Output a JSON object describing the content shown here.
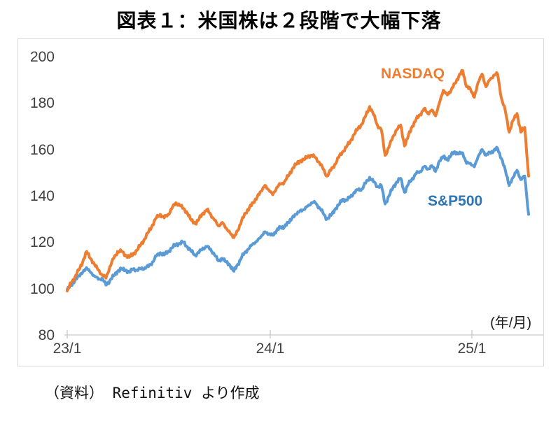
{
  "page": {
    "source_note": "（資料） Refinitiv より作成"
  },
  "chart_data": {
    "type": "line",
    "title": "図表１：米国株は２段階で大幅下落",
    "x_axis": {
      "unit_label": "(年/月)",
      "tick_labels": [
        "23/1",
        "24/1",
        "25/1"
      ],
      "range": "2023/1 to 2025/4",
      "points_spacing": "weekly"
    },
    "y_axis": {
      "min": 80,
      "max": 200,
      "tick_step": 20,
      "tick_labels": [
        "200",
        "180",
        "160",
        "140",
        "120",
        "100",
        "80"
      ]
    },
    "grid": "off",
    "legend": "inline-labels",
    "series": [
      {
        "name": "S&P500",
        "color": "#5B9BD5",
        "label_color": "#2E75B6",
        "values": [
          99.5,
          101.5,
          103.5,
          105.5,
          107,
          109,
          107,
          105.5,
          104,
          104.5,
          101.5,
          103.5,
          105.5,
          107.5,
          108.5,
          108,
          107,
          108.5,
          108,
          108.5,
          109,
          109.5,
          111.5,
          114,
          115.5,
          114.5,
          116,
          117.5,
          119,
          119.5,
          120,
          118,
          116,
          114.5,
          115.5,
          117.5,
          118,
          117,
          114.5,
          112,
          113,
          111.5,
          110,
          107.5,
          110.5,
          113.5,
          116,
          117.5,
          119.5,
          120.5,
          122.5,
          124.5,
          123.5,
          123,
          125,
          126.5,
          126.5,
          128.5,
          130.5,
          132,
          133.5,
          134,
          135.5,
          137,
          137,
          135,
          132.5,
          130,
          131.5,
          134,
          136,
          138.5,
          138,
          139.5,
          141.5,
          142.5,
          143,
          145.5,
          148,
          146,
          144,
          144.5,
          136.5,
          140,
          143.5,
          146,
          147.5,
          141.5,
          145,
          147.5,
          149.5,
          150.5,
          152.5,
          151.5,
          153,
          150.5,
          155,
          157,
          155.5,
          157.5,
          159,
          158,
          158.5,
          154,
          154,
          152.5,
          157,
          160,
          157.5,
          158.5,
          159.5,
          160.5,
          156,
          151,
          144.5,
          148,
          151,
          147,
          148.5,
          132
        ]
      },
      {
        "name": "NASDAQ",
        "color": "#ED7D31",
        "label_color": "#ED7D31",
        "values": [
          99,
          102.5,
          105,
          108,
          111.5,
          116,
          113,
          110.5,
          108,
          106,
          104.5,
          109.5,
          113,
          116,
          116,
          114.5,
          113.5,
          115,
          116.5,
          119,
          121.5,
          124.5,
          127.5,
          130.5,
          132,
          130.5,
          132,
          134.5,
          137,
          136,
          134.5,
          132.5,
          129.5,
          128,
          130,
          132.5,
          134,
          132,
          129.5,
          127,
          128.5,
          126,
          124,
          122,
          125,
          129.5,
          132.5,
          135,
          137,
          139.5,
          142,
          144.5,
          142.5,
          140.5,
          143.5,
          145,
          146,
          148.5,
          151.5,
          153.5,
          155,
          155.5,
          157,
          157.5,
          156.5,
          154.5,
          151.5,
          148.5,
          151,
          153.5,
          156.5,
          159,
          161,
          163.5,
          166.5,
          169,
          171,
          174.5,
          178.5,
          175,
          170.5,
          168.5,
          157.5,
          161,
          165.5,
          168.5,
          170.5,
          161.5,
          166,
          170,
          173,
          175,
          177.5,
          175.5,
          177,
          174.5,
          180,
          185.5,
          183.5,
          185.5,
          188.5,
          191.5,
          194,
          187,
          186,
          182.5,
          189,
          192.5,
          187,
          190,
          192,
          192.5,
          182,
          176.5,
          167.5,
          172.5,
          175.5,
          167.5,
          169.5,
          148.5
        ]
      }
    ]
  }
}
